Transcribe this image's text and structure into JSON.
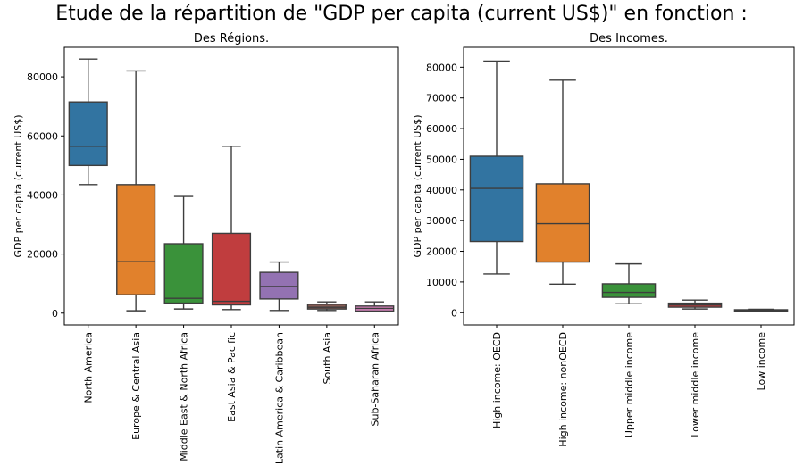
{
  "suptitle": "Etude de la répartition de \"GDP per capita (current US$)\" en fonction :",
  "chart_data": [
    {
      "type": "box",
      "title": "Des Régions.",
      "xlabel": "",
      "ylabel": "GDP per capita (current US$)",
      "ylim": [
        -4000,
        90000
      ],
      "yticks": [
        0,
        20000,
        40000,
        60000,
        80000
      ],
      "grid": false,
      "categories": [
        "North America",
        "Europe & Central Asia",
        "Middle East & North Africa",
        "East Asia & Pacific",
        "Latin America & Caribbean",
        "South Asia",
        "Sub-Saharan Africa"
      ],
      "colors": [
        "#3274a1",
        "#e1812c",
        "#3a923a",
        "#c03d3e",
        "#9372b2",
        "#845b53",
        "#d684bd"
      ],
      "boxes": [
        {
          "min": 43500,
          "q1": 50000,
          "median": 56500,
          "q3": 71500,
          "max": 86000
        },
        {
          "min": 800,
          "q1": 6200,
          "median": 17400,
          "q3": 43500,
          "max": 82000
        },
        {
          "min": 1400,
          "q1": 3400,
          "median": 5000,
          "q3": 23500,
          "max": 39500
        },
        {
          "min": 1200,
          "q1": 2800,
          "median": 4000,
          "q3": 27000,
          "max": 56500
        },
        {
          "min": 900,
          "q1": 4800,
          "median": 9000,
          "q3": 13800,
          "max": 17300
        },
        {
          "min": 900,
          "q1": 1400,
          "median": 2000,
          "q3": 3000,
          "max": 3800
        },
        {
          "min": 500,
          "q1": 700,
          "median": 1600,
          "q3": 2400,
          "max": 3800
        }
      ]
    },
    {
      "type": "box",
      "title": "Des Incomes.",
      "xlabel": "",
      "ylabel": "GDP per capita (current US$)",
      "ylim": [
        -4000,
        86500
      ],
      "yticks": [
        0,
        10000,
        20000,
        30000,
        40000,
        50000,
        60000,
        70000,
        80000
      ],
      "grid": false,
      "categories": [
        "High income: OECD",
        "High income: nonOECD",
        "Upper middle income",
        "Lower middle income",
        "Low income"
      ],
      "colors": [
        "#3274a1",
        "#e1812c",
        "#3a923a",
        "#c03d3e",
        "#9372b2"
      ],
      "boxes": [
        {
          "min": 12600,
          "q1": 23200,
          "median": 40500,
          "q3": 51000,
          "max": 82000
        },
        {
          "min": 9300,
          "q1": 16500,
          "median": 29000,
          "q3": 42000,
          "max": 75800
        },
        {
          "min": 2900,
          "q1": 5000,
          "median": 6600,
          "q3": 9400,
          "max": 15900
        },
        {
          "min": 1200,
          "q1": 1800,
          "median": 2500,
          "q3": 3100,
          "max": 4100
        },
        {
          "min": 400,
          "q1": 550,
          "median": 700,
          "q3": 950,
          "max": 1100
        }
      ]
    }
  ]
}
